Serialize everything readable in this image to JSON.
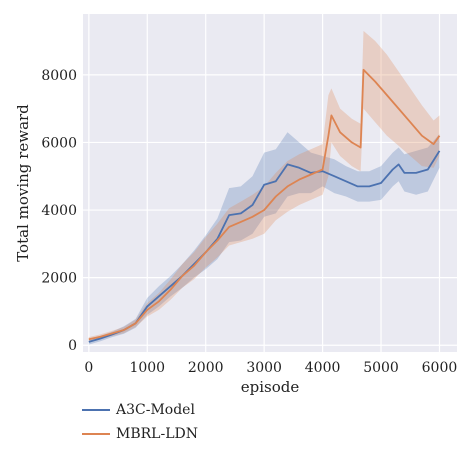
{
  "chart_data": {
    "type": "line",
    "xlabel": "episode",
    "ylabel": "Total moving reward",
    "xlim": [
      -100,
      6300
    ],
    "ylim": [
      -200,
      9800
    ],
    "xticks": [
      0,
      1000,
      2000,
      3000,
      4000,
      5000,
      6000
    ],
    "yticks": [
      0,
      2000,
      4000,
      6000,
      8000
    ],
    "xtick_labels": [
      "0",
      "1000",
      "2000",
      "3000",
      "4000",
      "5000",
      "6000"
    ],
    "ytick_labels": [
      "0",
      "2000",
      "4000",
      "6000",
      "8000"
    ],
    "background": "#eaeaf2",
    "grid": true,
    "legend_position": "below",
    "series": [
      {
        "name": "A3C-Model",
        "color": "#4c72b0",
        "x": [
          0,
          200,
          400,
          600,
          800,
          1000,
          1200,
          1400,
          1600,
          1800,
          2000,
          2200,
          2400,
          2600,
          2800,
          3000,
          3200,
          3400,
          3600,
          3800,
          4000,
          4200,
          4400,
          4600,
          4800,
          5000,
          5200,
          5300,
          5400,
          5600,
          5800,
          6000
        ],
        "y": [
          100,
          200,
          320,
          450,
          650,
          1150,
          1450,
          1750,
          2050,
          2400,
          2750,
          3150,
          3850,
          3900,
          4150,
          4750,
          4850,
          5350,
          5250,
          5100,
          5150,
          5000,
          4850,
          4700,
          4700,
          4800,
          5200,
          5350,
          5100,
          5100,
          5200,
          5750
        ],
        "upper": [
          180,
          280,
          400,
          560,
          780,
          1400,
          1750,
          2050,
          2400,
          2800,
          3250,
          3750,
          4650,
          4700,
          5000,
          5700,
          5800,
          6300,
          6000,
          5700,
          5600,
          5500,
          5300,
          5150,
          5150,
          5300,
          5700,
          5850,
          5650,
          5750,
          5850,
          6250
        ],
        "lower": [
          20,
          120,
          240,
          340,
          520,
          900,
          1150,
          1450,
          1700,
          2000,
          2250,
          2550,
          3050,
          3100,
          3300,
          3800,
          3900,
          4400,
          4500,
          4500,
          4700,
          4500,
          4400,
          4250,
          4250,
          4300,
          4700,
          4850,
          4550,
          4450,
          4550,
          5250
        ]
      },
      {
        "name": "MBRL-LDN",
        "color": "#dd8452",
        "x": [
          0,
          200,
          400,
          600,
          800,
          1000,
          1200,
          1400,
          1600,
          1800,
          2000,
          2200,
          2400,
          2600,
          2800,
          3000,
          3200,
          3400,
          3600,
          3800,
          4000,
          4100,
          4150,
          4300,
          4500,
          4650,
          4700,
          4900,
          5100,
          5300,
          5500,
          5700,
          5900,
          6000
        ],
        "y": [
          180,
          250,
          350,
          450,
          650,
          1050,
          1300,
          1650,
          2050,
          2350,
          2750,
          3100,
          3500,
          3650,
          3800,
          4000,
          4400,
          4700,
          4900,
          5050,
          5200,
          6200,
          6800,
          6300,
          6000,
          5850,
          8150,
          7800,
          7400,
          7000,
          6600,
          6200,
          5950,
          6200
        ],
        "upper": [
          240,
          320,
          430,
          540,
          760,
          1250,
          1550,
          1950,
          2400,
          2750,
          3200,
          3600,
          4050,
          4250,
          4450,
          4700,
          5100,
          5450,
          5650,
          5800,
          5950,
          7400,
          7600,
          7000,
          6700,
          6550,
          9300,
          9000,
          8600,
          8100,
          7600,
          7100,
          6650,
          6800
        ],
        "lower": [
          120,
          180,
          270,
          360,
          540,
          850,
          1050,
          1350,
          1700,
          1950,
          2300,
          2600,
          2950,
          3050,
          3150,
          3300,
          3700,
          3950,
          4150,
          4300,
          4450,
          5000,
          6000,
          5600,
          5300,
          5150,
          7000,
          6600,
          6200,
          5900,
          5600,
          5300,
          5250,
          5600
        ]
      }
    ]
  }
}
